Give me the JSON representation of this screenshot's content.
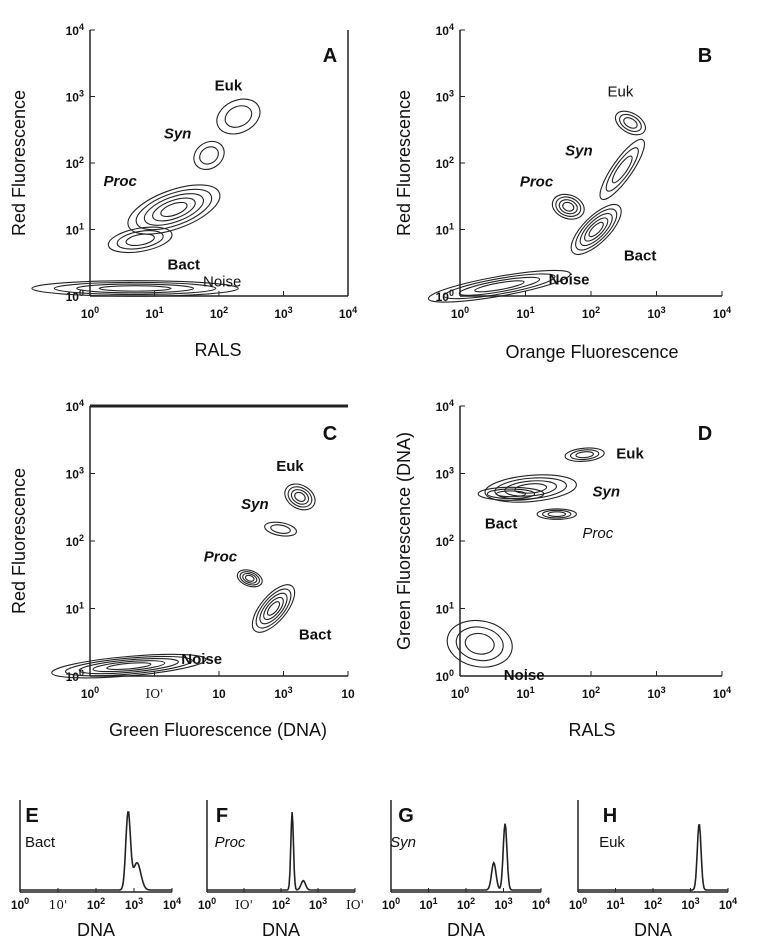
{
  "chart_data": [
    {
      "type": "contour",
      "panel": "A",
      "scale": "log",
      "xlim": [
        1,
        10000
      ],
      "ylim": [
        1,
        10000
      ],
      "xlabel": "RALS",
      "ylabel": "Red Fluorescence",
      "xticks": [
        "10^0",
        "10^1",
        "10^2",
        "10^3",
        "10^4"
      ],
      "yticks": [
        "10^0",
        "10^1",
        "10^2",
        "10^3",
        "10^4"
      ],
      "populations": [
        {
          "label": "Euk",
          "style": "bold",
          "x": 200,
          "y": 500,
          "spread": [
            0.35,
            0.25
          ],
          "rings": 2,
          "angle": -25
        },
        {
          "label": "Syn",
          "style": "bold-italic",
          "x": 70,
          "y": 130,
          "spread": [
            0.25,
            0.2
          ],
          "rings": 2,
          "angle": -35
        },
        {
          "label": "Proc",
          "style": "bold-italic",
          "x": 20,
          "y": 20,
          "spread": [
            0.75,
            0.3
          ],
          "rings": 5,
          "angle": -20
        },
        {
          "label": "Bact",
          "style": "bold",
          "x": 6,
          "y": 7,
          "spread": [
            0.5,
            0.18
          ],
          "rings": 3,
          "angle": -10
        },
        {
          "label": "Noise",
          "style": "plain",
          "x": 5,
          "y": 1.3,
          "spread": [
            1.6,
            0.12
          ],
          "rings": 4,
          "angle": 0
        }
      ]
    },
    {
      "type": "contour",
      "panel": "B",
      "scale": "log",
      "xlim": [
        1,
        10000
      ],
      "ylim": [
        1,
        10000
      ],
      "xlabel": "Orange Fluorescence",
      "ylabel": "Red Fluorescence",
      "xticks": [
        "10^0",
        "10^1",
        "10^2",
        "10^3",
        "10^4"
      ],
      "yticks": [
        "10^0",
        "10^1",
        "10^2",
        "10^3",
        "10^4"
      ],
      "populations": [
        {
          "label": "Euk",
          "style": "plain",
          "x": 400,
          "y": 400,
          "spread": [
            0.15,
            0.25
          ],
          "rings": 3,
          "angle": -60
        },
        {
          "label": "Syn",
          "style": "bold-italic",
          "x": 300,
          "y": 80,
          "spread": [
            0.55,
            0.15
          ],
          "rings": 3,
          "angle": -55
        },
        {
          "label": "Proc",
          "style": "bold-italic",
          "x": 45,
          "y": 22,
          "spread": [
            0.18,
            0.25
          ],
          "rings": 4,
          "angle": -70
        },
        {
          "label": "Bact",
          "style": "bold",
          "x": 120,
          "y": 10,
          "spread": [
            0.5,
            0.2
          ],
          "rings": 5,
          "angle": -45
        },
        {
          "label": "Noise",
          "style": "bold",
          "x": 4,
          "y": 1.4,
          "spread": [
            1.1,
            0.15
          ],
          "rings": 4,
          "angle": -10
        }
      ]
    },
    {
      "type": "contour",
      "panel": "C",
      "scale": "log",
      "xlim": [
        1,
        10000
      ],
      "ylim": [
        1,
        10000
      ],
      "xlabel": "Green Fluorescence (DNA)",
      "ylabel": "Red Fluorescence",
      "xticks": [
        "10^0",
        "IO'",
        "10",
        "10^3",
        "10"
      ],
      "yticks": [
        "10^0",
        "10^1",
        "10^2",
        "10^3",
        "10^4"
      ],
      "populations": [
        {
          "label": "Euk",
          "style": "bold",
          "x": 1800,
          "y": 450,
          "spread": [
            0.18,
            0.25
          ],
          "rings": 4,
          "angle": -60
        },
        {
          "label": "Syn",
          "style": "bold-italic",
          "x": 900,
          "y": 150,
          "spread": [
            0.1,
            0.25
          ],
          "rings": 2,
          "angle": -80
        },
        {
          "label": "Proc",
          "style": "bold-italic",
          "x": 300,
          "y": 28,
          "spread": [
            0.12,
            0.2
          ],
          "rings": 4,
          "angle": -70
        },
        {
          "label": "Bact",
          "style": "bold",
          "x": 700,
          "y": 10,
          "spread": [
            0.45,
            0.2
          ],
          "rings": 5,
          "angle": -50
        },
        {
          "label": "Noise",
          "style": "bold",
          "x": 4,
          "y": 1.4,
          "spread": [
            1.2,
            0.15
          ],
          "rings": 5,
          "angle": -5
        }
      ]
    },
    {
      "type": "contour",
      "panel": "D",
      "scale": "log",
      "xlim": [
        1,
        10000
      ],
      "ylim": [
        1,
        10000
      ],
      "xlabel": "RALS",
      "ylabel": "Green Fluorescence (DNA)",
      "xticks": [
        "10^0",
        "10^1",
        "10^2",
        "10^3",
        "10^4"
      ],
      "yticks": [
        "10^0",
        "10^1",
        "10^2",
        "10^3",
        "10^4"
      ],
      "populations": [
        {
          "label": "Euk",
          "style": "bold",
          "x": 80,
          "y": 1900,
          "spread": [
            0.3,
            0.1
          ],
          "rings": 3,
          "angle": -5
        },
        {
          "label": "Syn",
          "style": "bold-italic",
          "x": 12,
          "y": 600,
          "spread": [
            0.7,
            0.2
          ],
          "rings": 4,
          "angle": -5
        },
        {
          "label": "Proc",
          "style": "italic",
          "x": 30,
          "y": 250,
          "spread": [
            0.3,
            0.08
          ],
          "rings": 3,
          "angle": 0
        },
        {
          "label": "Bact",
          "style": "bold",
          "x": 6,
          "y": 500,
          "spread": [
            0.5,
            0.1
          ],
          "rings": 3,
          "angle": 0
        },
        {
          "label": "Noise",
          "style": "bold",
          "x": 2,
          "y": 3,
          "spread": [
            0.35,
            0.5
          ],
          "rings": 3,
          "angle": -80
        }
      ]
    },
    {
      "type": "histogram",
      "panel": "E",
      "label": "Bact",
      "label_style": "plain",
      "scale": "log",
      "xlim": [
        1,
        10000
      ],
      "xlabel": "DNA",
      "xticks": [
        "10^0",
        "10'",
        "10^2",
        "10^3",
        "10^4"
      ],
      "peaks": [
        {
          "x": 700,
          "height": 1.0,
          "width": 0.06
        },
        {
          "x": 1200,
          "height": 0.35,
          "width": 0.1
        }
      ]
    },
    {
      "type": "histogram",
      "panel": "F",
      "label": "Proc",
      "label_style": "italic",
      "scale": "log",
      "xlim": [
        1,
        10000
      ],
      "xlabel": "DNA",
      "xticks": [
        "10^0",
        "IO'",
        "10^2",
        "10^3",
        "IO'"
      ],
      "peaks": [
        {
          "x": 200,
          "height": 1.0,
          "width": 0.035
        },
        {
          "x": 400,
          "height": 0.12,
          "width": 0.06
        }
      ]
    },
    {
      "type": "histogram",
      "panel": "G",
      "label": "Syn",
      "label_style": "italic",
      "scale": "log",
      "xlim": [
        1,
        10000
      ],
      "xlabel": "DNA",
      "xticks": [
        "10^0",
        "10^1",
        "10^2",
        "10^3",
        "10^4"
      ],
      "peaks": [
        {
          "x": 550,
          "height": 0.35,
          "width": 0.06
        },
        {
          "x": 1100,
          "height": 0.85,
          "width": 0.05
        }
      ]
    },
    {
      "type": "histogram",
      "panel": "H",
      "label": "Euk",
      "label_style": "plain",
      "scale": "log",
      "xlim": [
        1,
        10000
      ],
      "xlabel": "DNA",
      "xticks": [
        "10^0",
        "10^1",
        "10^2",
        "10^3",
        "10^4"
      ],
      "peaks": [
        {
          "x": 1700,
          "height": 0.85,
          "width": 0.05
        }
      ]
    }
  ]
}
